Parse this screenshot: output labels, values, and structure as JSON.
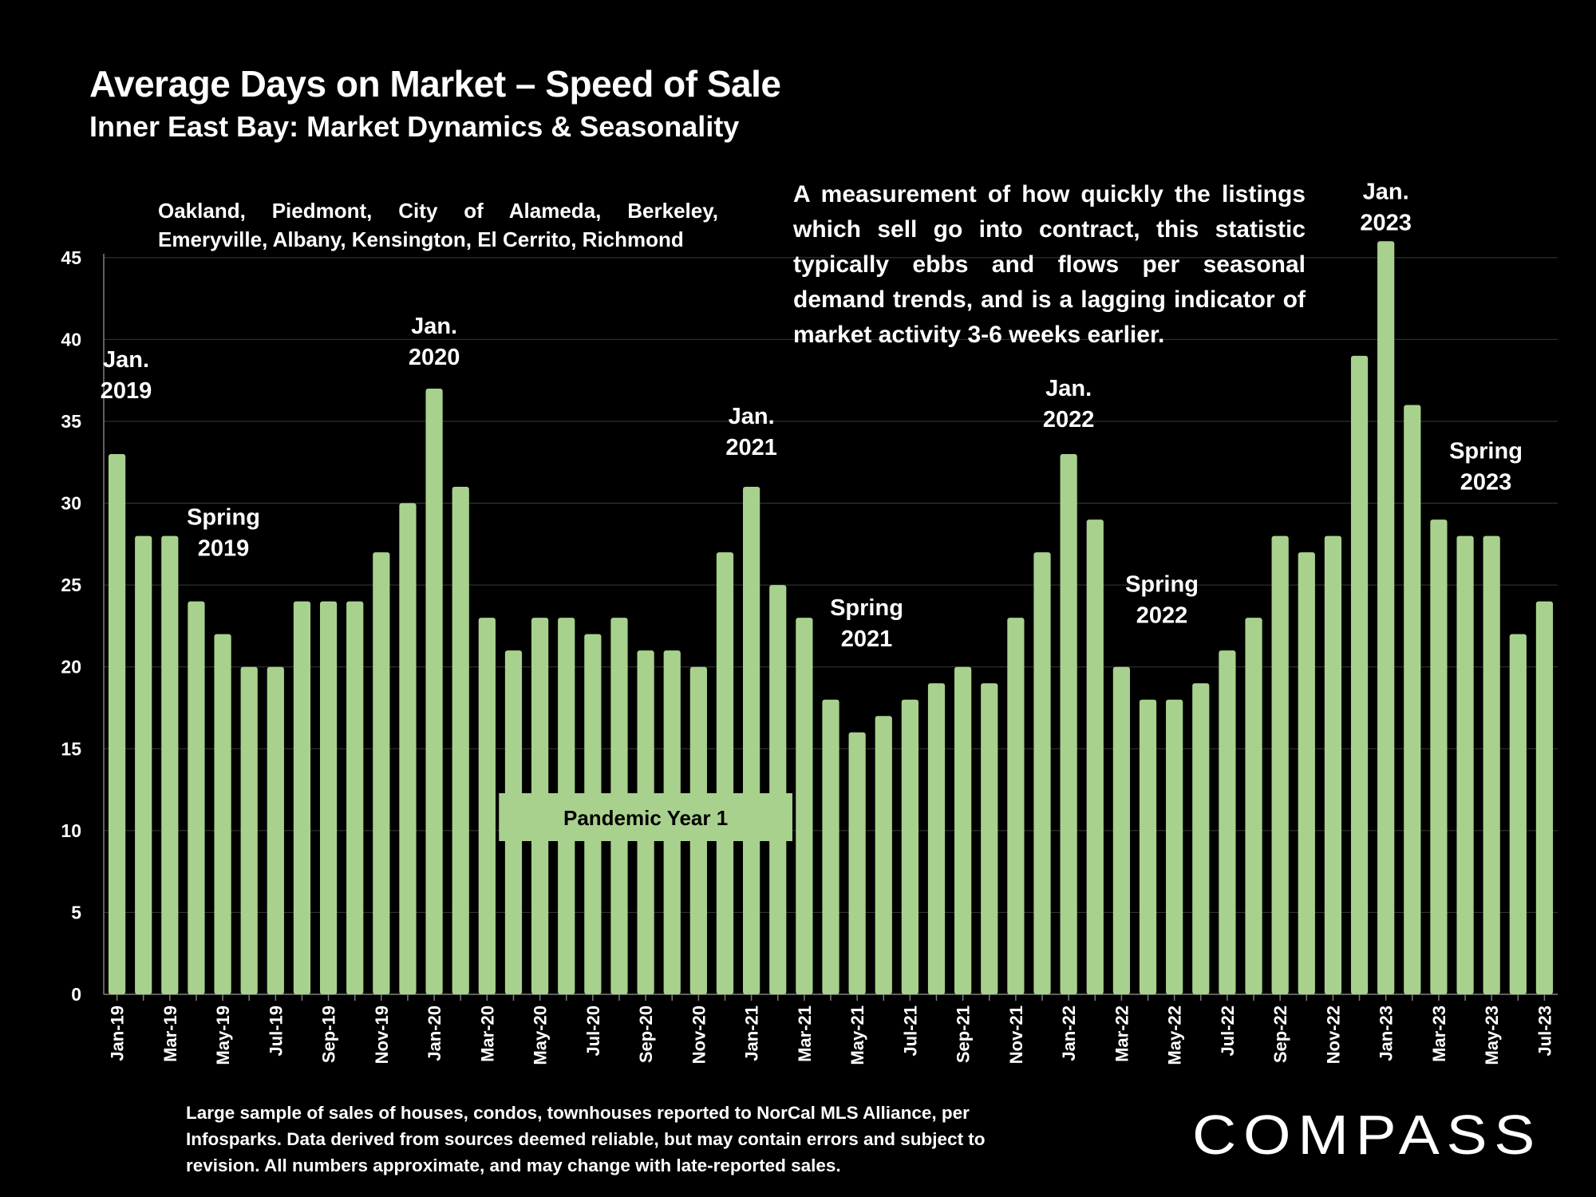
{
  "title": "Average Days on Market – Speed of Sale",
  "subtitle": "Inner East Bay: Market Dynamics & Seasonality",
  "region_text": "Oakland, Piedmont, City of Alameda, Berkeley, Emeryville, Albany, Kensington, El Cerrito, Richmond",
  "description": "A measurement of how quickly the listings which sell go into contract, this statistic typically ebbs and flows per seasonal demand trends, and is a lagging indicator of market activity 3-6 weeks earlier.",
  "footnote": "Large sample of sales of houses, condos, townhouses reported to NorCal MLS Alliance, per Infosparks. Data derived from sources deemed reliable, but may contain errors and subject to revision. All numbers approximate, and may change with late-reported sales.",
  "logo_text": "COMPASS",
  "colors": {
    "background": "#000000",
    "bar": "#a9d18e",
    "text": "#ffffff",
    "gridline": "#3a3a3a",
    "callout_fill": "#a9d18e"
  },
  "chart_data": {
    "type": "bar",
    "title": "Average Days on Market – Speed of Sale",
    "xlabel": "",
    "ylabel": "",
    "ylim": [
      0,
      45
    ],
    "yticks": [
      0,
      5,
      10,
      15,
      20,
      25,
      30,
      35,
      40,
      45
    ],
    "grid": true,
    "categories": [
      "Jan-19",
      "Feb-19",
      "Mar-19",
      "Apr-19",
      "May-19",
      "Jun-19",
      "Jul-19",
      "Aug-19",
      "Sep-19",
      "Oct-19",
      "Nov-19",
      "Dec-19",
      "Jan-20",
      "Feb-20",
      "Mar-20",
      "Apr-20",
      "May-20",
      "Jun-20",
      "Jul-20",
      "Aug-20",
      "Sep-20",
      "Oct-20",
      "Nov-20",
      "Dec-20",
      "Jan-21",
      "Feb-21",
      "Mar-21",
      "Apr-21",
      "May-21",
      "Jun-21",
      "Jul-21",
      "Aug-21",
      "Sep-21",
      "Oct-21",
      "Nov-21",
      "Dec-21",
      "Jan-22",
      "Feb-22",
      "Mar-22",
      "Apr-22",
      "May-22",
      "Jun-22",
      "Jul-22",
      "Aug-22",
      "Sep-22",
      "Oct-22",
      "Nov-22",
      "Dec-22",
      "Jan-23",
      "Feb-23",
      "Mar-23",
      "Apr-23",
      "May-23",
      "Jun-23",
      "Jul-23"
    ],
    "values": [
      33,
      28,
      28,
      24,
      22,
      20,
      20,
      24,
      24,
      24,
      27,
      30,
      37,
      31,
      23,
      21,
      23,
      23,
      22,
      23,
      21,
      21,
      20,
      27,
      31,
      25,
      23,
      18,
      16,
      17,
      18,
      19,
      20,
      19,
      23,
      27,
      33,
      29,
      20,
      18,
      18,
      19,
      21,
      23,
      28,
      27,
      28,
      39,
      46,
      36,
      29,
      28,
      28,
      22,
      24
    ],
    "annotations": [
      {
        "lines": [
          "Jan.",
          "2019"
        ],
        "category": "Jan-19"
      },
      {
        "lines": [
          "Spring",
          "2019"
        ],
        "category": "May-19"
      },
      {
        "lines": [
          "Jan.",
          "2020"
        ],
        "category": "Jan-20"
      },
      {
        "lines": [
          "Jan.",
          "2021"
        ],
        "category": "Jan-21"
      },
      {
        "lines": [
          "Spring",
          "2021"
        ],
        "category": "May-21"
      },
      {
        "lines": [
          "Jan.",
          "2022"
        ],
        "category": "Jan-22"
      },
      {
        "lines": [
          "Spring",
          "2022"
        ],
        "category": "May-22"
      },
      {
        "lines": [
          "Jan.",
          "2023"
        ],
        "category": "Jan-23"
      },
      {
        "lines": [
          "Spring",
          "2023"
        ],
        "category": "May-23"
      }
    ],
    "callout": {
      "text": "Pandemic Year 1",
      "from": "Apr-20",
      "to": "Feb-21"
    }
  }
}
